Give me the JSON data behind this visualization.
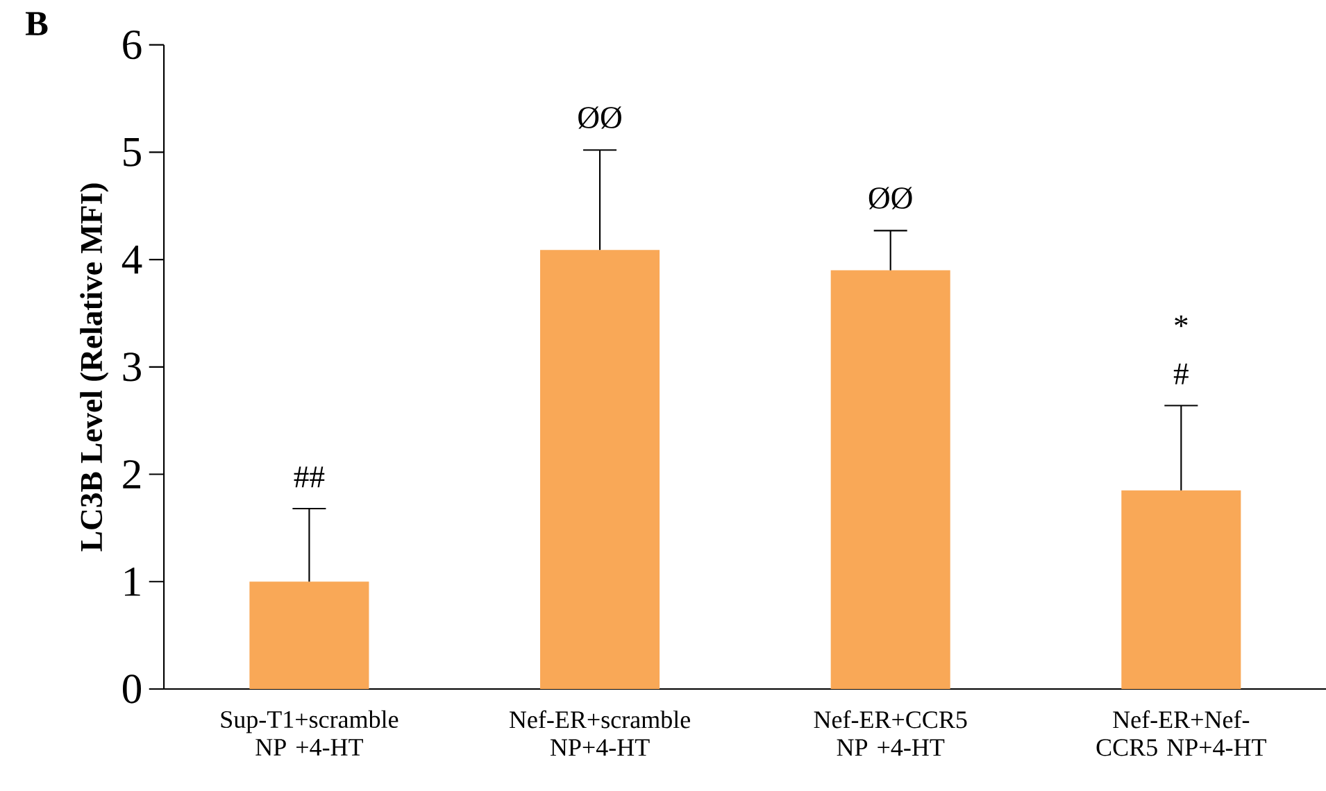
{
  "chart_data": {
    "type": "bar",
    "ylabel": "LC3B Level (Relative MFI)",
    "categories": [
      "Sup-T1+scramble NP +4-HT",
      "Nef-ER+scramble NP+4-HT",
      "Nef-ER+CCR5 NP +4-HT",
      "Nef-ER+Nef-CCR5 NP+4-HT"
    ],
    "values": [
      1.0,
      4.09,
      3.9,
      1.85
    ],
    "errors": [
      0.68,
      0.93,
      0.37,
      0.79
    ],
    "color": "#f9a857",
    "ylim": [
      0,
      6
    ],
    "yticks": [
      0,
      1,
      2,
      3,
      4,
      5,
      6
    ],
    "annotations": [
      "B",
      "##",
      "ØØ",
      "ØØ",
      "#",
      "*"
    ]
  }
}
